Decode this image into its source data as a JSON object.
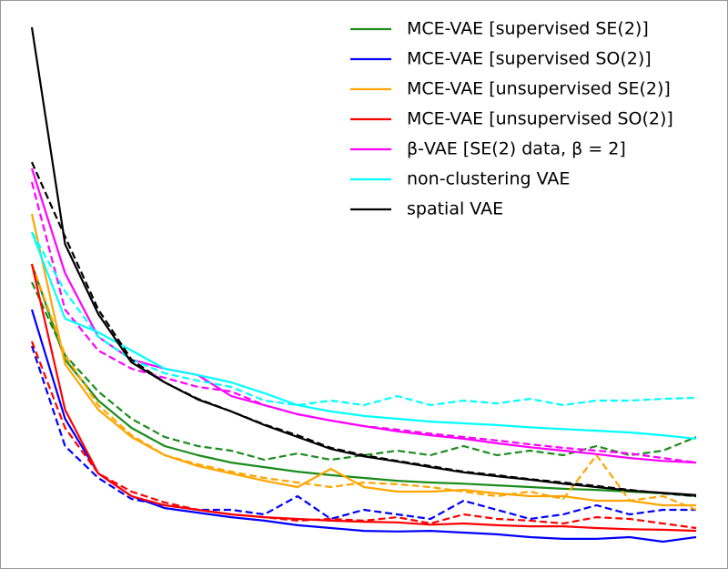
{
  "chart_data": {
    "type": "line",
    "legend": "upper right",
    "x": [
      0,
      1,
      2,
      3,
      4,
      5,
      6,
      7,
      8,
      9,
      10,
      11,
      12,
      13,
      14,
      15,
      16,
      17,
      18,
      19,
      20
    ],
    "xlim": [
      -0.96,
      20.96
    ],
    "ylim": [
      0,
      100
    ],
    "series": [
      {
        "name": "MCE-VAE [supervised SE(2)]",
        "color": "#1a8c1a",
        "values": [
          53.6,
          36.8,
          29.6,
          24.8,
          21.6,
          20,
          18.7,
          17.9,
          17.1,
          16.5,
          16,
          15.5,
          15.2,
          15,
          14.7,
          14.4,
          14.1,
          13.9,
          13.6,
          13.3,
          12.8
        ],
        "values_dashed": [
          50.4,
          37.6,
          31.2,
          26.4,
          23.2,
          21.6,
          20.8,
          19.2,
          20.3,
          19.2,
          20,
          20.8,
          20,
          21.6,
          20,
          20.8,
          20,
          21.6,
          20,
          20.8,
          23.2
        ]
      },
      {
        "name": "MCE-VAE [supervised SO(2)]",
        "color": "#0000ff",
        "values": [
          45.6,
          26.4,
          16.8,
          12.8,
          10.7,
          9.9,
          9.1,
          8.5,
          7.7,
          7.2,
          6.7,
          6.6,
          6.7,
          6.4,
          6.1,
          5.6,
          5.3,
          5.3,
          5.6,
          4.8,
          5.6
        ],
        "values_dashed": [
          39.2,
          21.6,
          16,
          12.3,
          11.2,
          10.4,
          10.4,
          9.6,
          12.8,
          8.8,
          10.4,
          9.6,
          8.8,
          12,
          10.4,
          8.8,
          9.6,
          11.2,
          9.6,
          10.4,
          10.4
        ]
      },
      {
        "name": "MCE-VAE [unsupervised SE(2)]",
        "color": "#ffa500",
        "values": [
          62.4,
          36,
          28,
          23.2,
          20,
          18.1,
          16.8,
          15.5,
          14.4,
          17.6,
          14.4,
          13.6,
          13.6,
          13.9,
          13.3,
          12.8,
          12.8,
          12,
          12,
          11.2,
          11.2
        ],
        "values_dashed": [
          53.6,
          37.6,
          28.8,
          23.5,
          20,
          18.4,
          17.1,
          16,
          15.2,
          14.4,
          15.2,
          14.9,
          14.4,
          13.6,
          12.8,
          13.6,
          12.3,
          20,
          12,
          12.8,
          10.4
        ]
      },
      {
        "name": "MCE-VAE [unsupervised SO(2)]",
        "color": "#ff0000",
        "values": [
          53.6,
          28,
          16.8,
          12.8,
          11.2,
          10.4,
          9.6,
          9.1,
          8.8,
          8.5,
          8.3,
          8.2,
          7.8,
          8,
          7.7,
          7.5,
          7.5,
          7.2,
          7,
          6.9,
          6.7
        ],
        "values_dashed": [
          40,
          24.8,
          16.8,
          13.6,
          11.7,
          10.4,
          9.6,
          9.1,
          8.5,
          8.8,
          8.5,
          9.1,
          8,
          9.6,
          8.8,
          8.5,
          8,
          9.1,
          8.8,
          8,
          7.2
        ]
      },
      {
        "name": "β-VAE [SE(2) data, β = 2]",
        "color": "#ff00ff",
        "values": [
          70.4,
          52,
          40.8,
          36.8,
          35.2,
          34.1,
          30.4,
          28.8,
          27.2,
          26.1,
          25.1,
          24.2,
          23.5,
          22.9,
          22.1,
          21.4,
          20.8,
          20.2,
          19.5,
          19,
          18.7
        ],
        "values_dashed": [
          68,
          45.6,
          38.4,
          35.2,
          33.6,
          32,
          31.2,
          28.8,
          27.2,
          26.1,
          25.1,
          24.5,
          23.8,
          23.2,
          22.6,
          21.9,
          21.3,
          20.8,
          20.3,
          19.5,
          18.7
        ]
      },
      {
        "name": "non-clustering VAE",
        "color": "#00ffff",
        "values": [
          59.2,
          44,
          41.6,
          38.4,
          35.2,
          34.1,
          32.8,
          30.9,
          28.8,
          27.7,
          26.9,
          26.4,
          25.9,
          25.6,
          25.3,
          24.9,
          24.6,
          24.3,
          24,
          23.5,
          22.9
        ],
        "values_dashed": [
          59.2,
          48.8,
          40.8,
          36.8,
          34.4,
          33.1,
          32,
          29.6,
          28.8,
          29.6,
          28.8,
          30.4,
          28.8,
          29.6,
          29.1,
          29.9,
          28.8,
          29.6,
          29.6,
          29.9,
          30.1
        ]
      },
      {
        "name": "spatial VAE",
        "color": "#000000",
        "values": [
          95.2,
          57.1,
          44.8,
          36.3,
          32.8,
          29.8,
          27.7,
          25.3,
          23.2,
          21.1,
          19.8,
          18.9,
          17.9,
          17,
          16.3,
          15.7,
          15,
          14.4,
          13.8,
          13.4,
          13
        ],
        "values_dashed": [
          71.5,
          58.4,
          45.6,
          36.8,
          32.8,
          29.9,
          27.7,
          25.4,
          23.5,
          21.3,
          20,
          19,
          18.1,
          17.1,
          16.5,
          15.8,
          15.2,
          14.6,
          13.9,
          13.3,
          12.8
        ]
      }
    ]
  }
}
